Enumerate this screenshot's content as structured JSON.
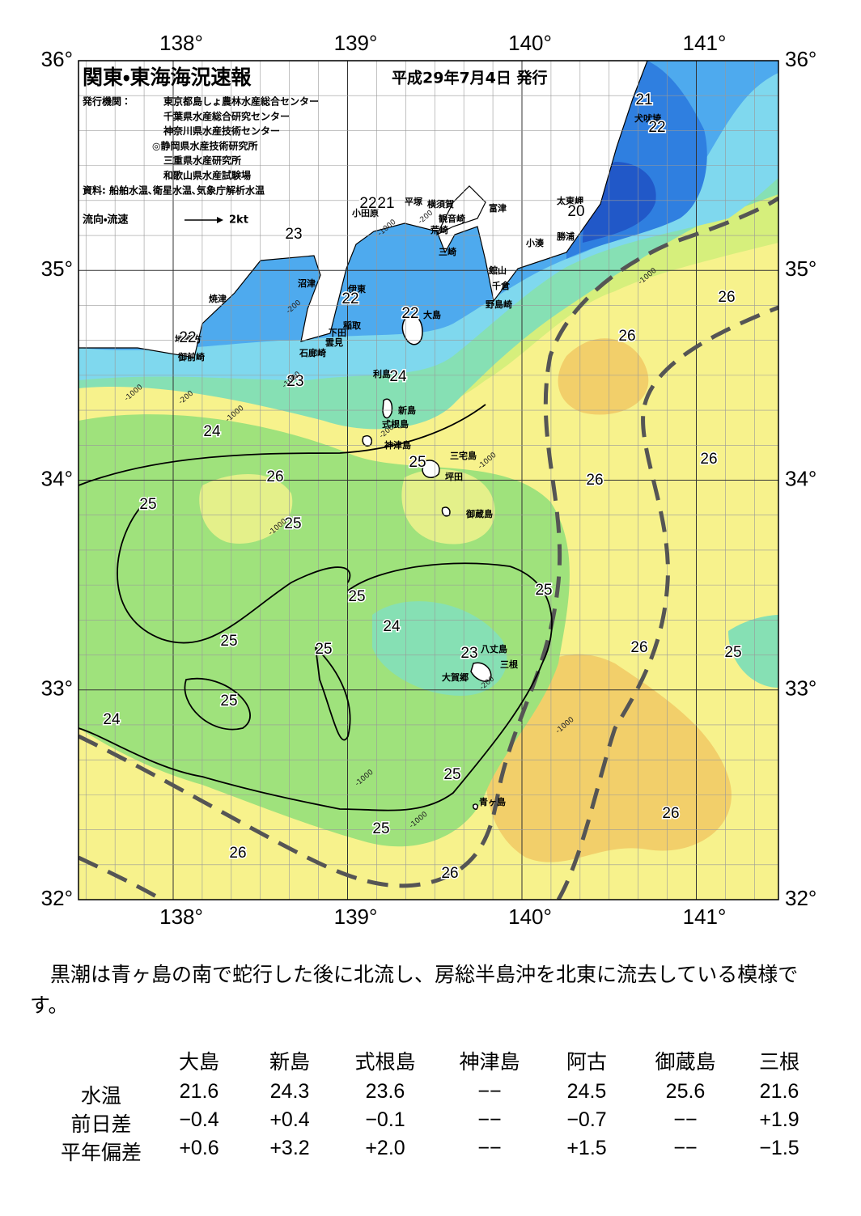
{
  "map": {
    "title": "関東・東海海況速報",
    "issue_date": "平成29年7月4日 発行",
    "publisher_label": "発行機関：",
    "publishers": [
      "東京都島しょ農林水産総合センター",
      "千葉県水産総合研究センター",
      "神奈川県水産技術センター",
      "◎静岡県水産技術研究所",
      "三重県水産研究所",
      "和歌山県水産試験場"
    ],
    "source": "資料: 船舶水温､衛星水温､気象庁解析水温",
    "legend": {
      "label": "流向・流速",
      "scale": "2kt"
    },
    "lon_labels": [
      "138°",
      "139°",
      "140°",
      "141°"
    ],
    "lat_labels": [
      "36°",
      "35°",
      "34°",
      "33°",
      "32°"
    ],
    "place_names": [
      "犬吠埼",
      "太東岬",
      "勝浦",
      "小湊",
      "富津",
      "横須賀",
      "平塚",
      "小田原",
      "観音崎",
      "荒崎",
      "三崎",
      "館山",
      "千倉",
      "野島崎",
      "沼津",
      "焼津",
      "伊東",
      "稲取",
      "下田",
      "雲見",
      "石廊崎",
      "地頭方",
      "御前崎",
      "大島",
      "利島",
      "新島",
      "式根島",
      "神津島",
      "三宅島",
      "坪田",
      "御蔵島",
      "八丈島",
      "三根",
      "大賀郷",
      "青ヶ島"
    ],
    "contour_labels": [
      "21",
      "22",
      "22",
      "21",
      "20",
      "23",
      "22",
      "22",
      "22",
      "24",
      "23",
      "24",
      "26",
      "25",
      "25",
      "25",
      "26",
      "26",
      "26",
      "26",
      "25",
      "25",
      "24",
      "25",
      "25",
      "23",
      "26",
      "25",
      "25",
      "24",
      "25",
      "26",
      "25",
      "26",
      "26"
    ],
    "depth_labels": [
      "-200",
      "-1000",
      "-200",
      "-1000",
      "-200",
      "-1000",
      "-1000",
      "-200",
      "-1000",
      "-1000",
      "-1000",
      "-1000",
      "-1000",
      "-200",
      "-1000"
    ]
  },
  "summary": "黒潮は青ヶ島の南で蛇行した後に北流し、房総半島沖を北東に流去している模様です。",
  "table": {
    "header": [
      "大島",
      "新島",
      "式根島",
      "神津島",
      "阿古",
      "御蔵島",
      "三根"
    ],
    "rows": [
      {
        "label": "水温",
        "values": [
          "21.6",
          "24.3",
          "23.6",
          "−−",
          "24.5",
          "25.6",
          "21.6"
        ]
      },
      {
        "label": "前日差",
        "values": [
          "−0.4",
          "+0.4",
          "−0.1",
          "−−",
          "−0.7",
          "−−",
          "+1.9"
        ]
      },
      {
        "label": "平年偏差",
        "values": [
          "+0.6",
          "+3.2",
          "+2.0",
          "−−",
          "+1.5",
          "−−",
          "−1.5"
        ]
      }
    ]
  }
}
